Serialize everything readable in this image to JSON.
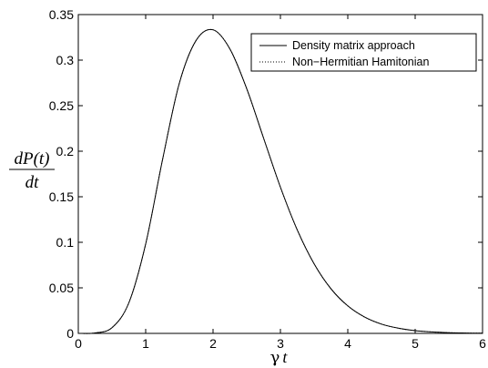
{
  "chart_data": {
    "type": "line",
    "xlabel": {
      "greek": "γ",
      "var": "t"
    },
    "ylabel": {
      "numerator": "dP(t)",
      "denominator": "dt"
    },
    "xlim": [
      0,
      6
    ],
    "ylim": [
      0,
      0.35
    ],
    "x_ticks": [
      0,
      1,
      2,
      3,
      4,
      5,
      6
    ],
    "x_tick_labels": [
      "0",
      "1",
      "2",
      "3",
      "4",
      "5",
      "6"
    ],
    "y_ticks": [
      0,
      0.05,
      0.1,
      0.15,
      0.2,
      0.25,
      0.3,
      0.35
    ],
    "y_tick_labels": [
      "0",
      "0.05",
      "0.1",
      "0.15",
      "0.2",
      "0.25",
      "0.3",
      "0.35"
    ],
    "grid": false,
    "legend_position": "top-right",
    "series": [
      {
        "name": "Density matrix approach",
        "style": "solid",
        "color": "#000000",
        "x": [
          0,
          0.25,
          0.5,
          0.75,
          1.0,
          1.25,
          1.5,
          1.75,
          2.0,
          2.25,
          2.5,
          2.75,
          3.0,
          3.25,
          3.5,
          3.75,
          4.0,
          4.25,
          4.5,
          4.75,
          5.0,
          5.25,
          5.5,
          5.75,
          6.0
        ],
        "y": [
          0,
          0.0005,
          0.0063,
          0.0335,
          0.0981,
          0.1906,
          0.2747,
          0.3218,
          0.3333,
          0.3123,
          0.2686,
          0.2144,
          0.1605,
          0.1136,
          0.0764,
          0.049,
          0.0302,
          0.0179,
          0.0102,
          0.0057,
          0.003,
          0.0016,
          0.0008,
          0.0004,
          0.0002
        ]
      },
      {
        "name": "Non−Hermitian Hamitonian",
        "style": "dotted",
        "color": "#000000",
        "x": [
          0,
          0.25,
          0.5,
          0.75,
          1.0,
          1.25,
          1.5,
          1.75,
          2.0,
          2.25,
          2.5,
          2.75,
          3.0,
          3.25,
          3.5,
          3.75,
          4.0,
          4.25,
          4.5,
          4.75,
          5.0,
          5.25,
          5.5,
          5.75,
          6.0
        ],
        "y": [
          0,
          0.0005,
          0.0063,
          0.0335,
          0.0981,
          0.1906,
          0.2747,
          0.3218,
          0.3333,
          0.3123,
          0.2686,
          0.2144,
          0.1605,
          0.1136,
          0.0764,
          0.049,
          0.0302,
          0.0179,
          0.0102,
          0.0057,
          0.003,
          0.0016,
          0.0008,
          0.0004,
          0.0002
        ]
      }
    ]
  }
}
